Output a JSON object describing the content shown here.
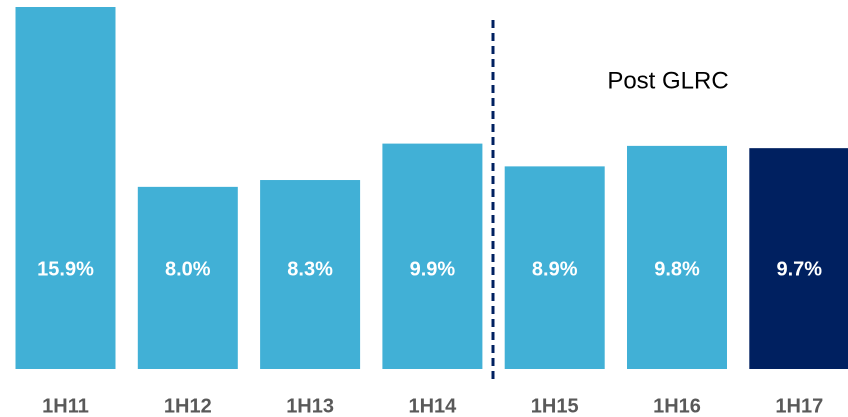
{
  "chart_data": {
    "type": "bar",
    "categories": [
      "1H11",
      "1H12",
      "1H13",
      "1H14",
      "1H15",
      "1H16",
      "1H17"
    ],
    "values": [
      15.9,
      8.0,
      8.3,
      9.9,
      8.9,
      9.8,
      9.7
    ],
    "value_labels": [
      "15.9%",
      "8.0%",
      "8.3%",
      "9.9%",
      "8.9%",
      "9.8%",
      "9.7%"
    ],
    "colors": [
      "#41b0d6",
      "#41b0d6",
      "#41b0d6",
      "#41b0d6",
      "#41b0d6",
      "#41b0d6",
      "#002060"
    ],
    "annotation": "Post GLRC"
  }
}
